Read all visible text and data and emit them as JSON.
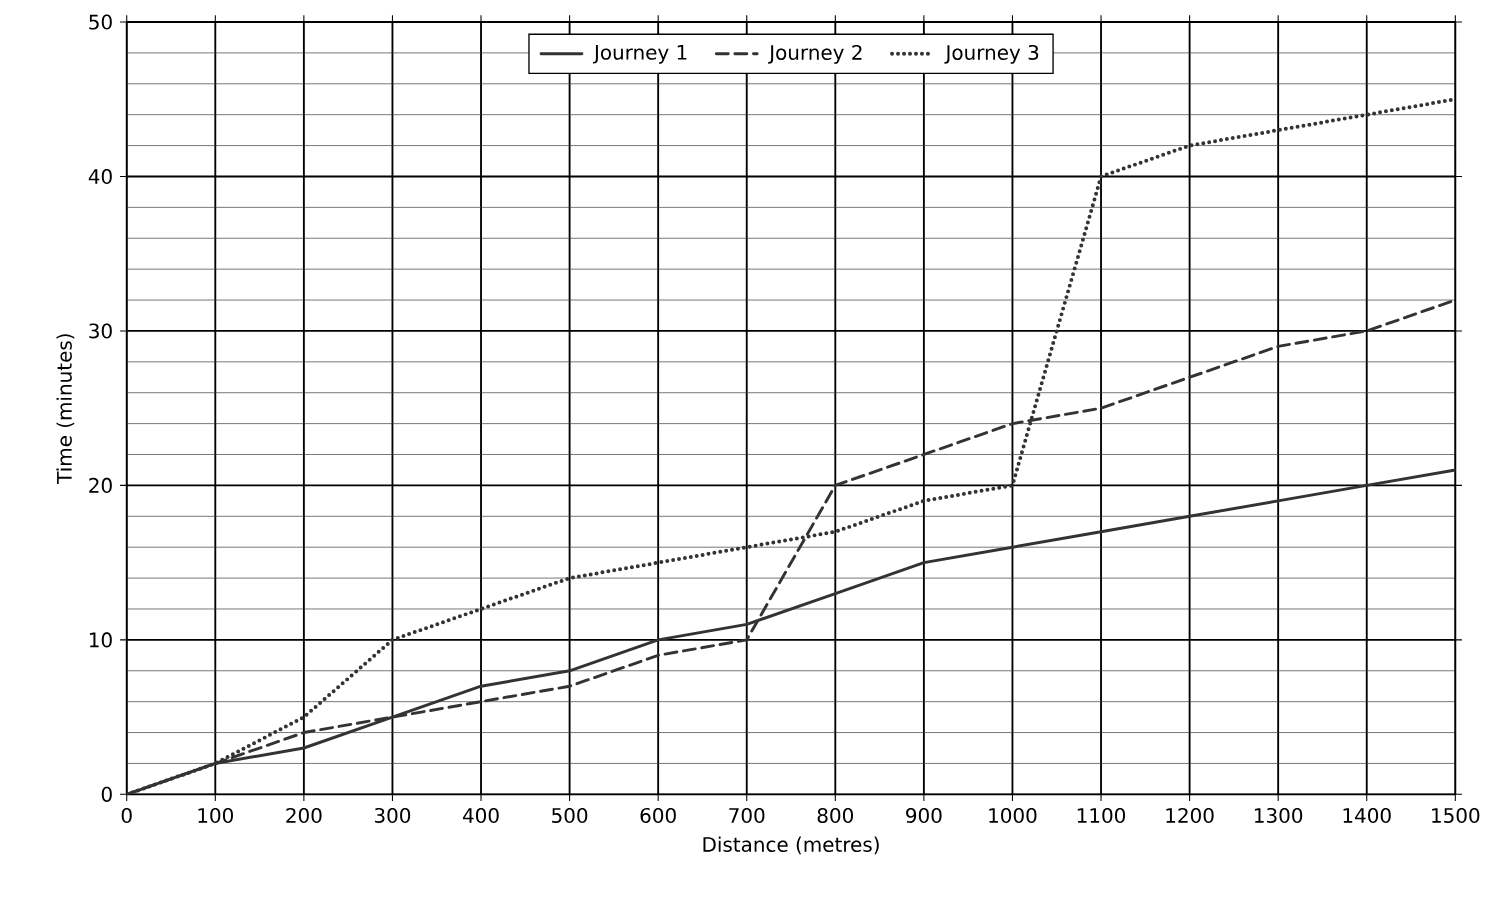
{
  "chart_data": {
    "type": "line",
    "xlabel": "Distance (metres)",
    "ylabel": "Time (minutes)",
    "x": [
      0,
      100,
      200,
      300,
      400,
      500,
      600,
      700,
      800,
      900,
      1000,
      1100,
      1200,
      1300,
      1400,
      1500
    ],
    "series": [
      {
        "name": "Journey 1",
        "color": "#333333",
        "line_style": "solid",
        "values": [
          0,
          2,
          3,
          5,
          7,
          8,
          10,
          11,
          13,
          15,
          16,
          17,
          18,
          19,
          20,
          21
        ]
      },
      {
        "name": "Journey 2",
        "color": "#333333",
        "line_style": "dashed",
        "values": [
          0,
          2,
          4,
          5,
          6,
          7,
          9,
          10,
          20,
          22,
          24,
          25,
          27,
          29,
          30,
          32
        ]
      },
      {
        "name": "Journey 3",
        "color": "#333333",
        "line_style": "dotted",
        "values": [
          0,
          2,
          5,
          10,
          12,
          14,
          15,
          16,
          17,
          19,
          20,
          40,
          42,
          43,
          44,
          45
        ]
      }
    ],
    "xlim": [
      0,
      1500
    ],
    "ylim": [
      0,
      50
    ],
    "xticks": [
      0,
      100,
      200,
      300,
      400,
      500,
      600,
      700,
      800,
      900,
      1000,
      1100,
      1200,
      1300,
      1400,
      1500
    ],
    "yticks": [
      0,
      10,
      20,
      30,
      40,
      50
    ],
    "grid": true,
    "legend": "top"
  }
}
